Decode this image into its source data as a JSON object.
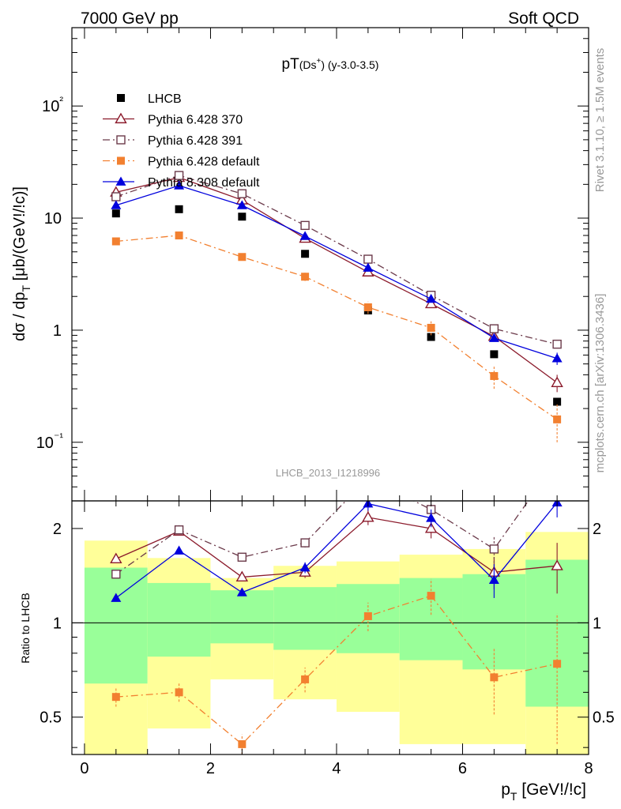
{
  "header": {
    "energy_label": "7000 GeV pp",
    "process_label": "Soft QCD"
  },
  "side_labels": {
    "rivet": "Rivet 3.1.10, ≥ 1.5M events",
    "mcplots": "mcplots.cern.ch [arXiv:1306.3436]"
  },
  "analysis_id": "LHCB_2013_I1218996",
  "chart_data": [
    {
      "type": "line",
      "panel": "main",
      "title": "pT(Ds⁺) (y-3.0-3.5)",
      "ylabel": "dσ / dp_T [μb/(GeV!/!c)]",
      "xlabel": "",
      "y_scale": "log",
      "xlim": [
        -0.2,
        8.0
      ],
      "ylim": [
        0.03,
        500
      ],
      "y_ticks": [
        0.1,
        1,
        10,
        100
      ],
      "y_tick_labels": [
        "10⁻¹",
        "1",
        "10",
        "10²"
      ],
      "legend_position": "top-left",
      "x": [
        0.5,
        1.5,
        2.5,
        3.5,
        4.5,
        5.5,
        6.5,
        7.5
      ],
      "series": [
        {
          "name": "LHCB",
          "color": "#000000",
          "marker": "filled-square",
          "line": "none",
          "values": [
            11.0,
            12.0,
            10.3,
            4.8,
            1.5,
            0.87,
            0.61,
            0.23
          ]
        },
        {
          "name": "Pythia 6.428 370",
          "color": "#8b1a2b",
          "marker": "open-triangle",
          "line": "solid",
          "values": [
            17.0,
            23.0,
            14.5,
            6.6,
            3.3,
            1.72,
            0.88,
            0.34
          ],
          "errors": [
            0.6,
            0.8,
            0.5,
            0.3,
            0.15,
            0.08,
            0.06,
            0.06
          ]
        },
        {
          "name": "Pythia 6.428 391",
          "color": "#6b3a4a",
          "marker": "open-square",
          "line": "dashdot",
          "values": [
            15.5,
            24.0,
            16.5,
            8.6,
            4.3,
            2.05,
            1.03,
            0.75
          ],
          "errors": [
            0.5,
            0.8,
            0.5,
            0.3,
            0.15,
            0.08,
            0.06,
            0.06
          ]
        },
        {
          "name": "Pythia 6.428 default",
          "color": "#f28030",
          "marker": "filled-square",
          "line": "dashdot",
          "values": [
            6.2,
            7.0,
            4.5,
            3.0,
            1.6,
            1.05,
            0.39,
            0.16
          ],
          "errors": [
            0.2,
            0.25,
            0.2,
            0.25,
            0.2,
            0.15,
            0.09,
            0.06
          ]
        },
        {
          "name": "Pythia 8.308 default",
          "color": "#0000dd",
          "marker": "filled-triangle",
          "line": "solid",
          "values": [
            13.0,
            19.5,
            13.0,
            6.9,
            3.6,
            1.9,
            0.85,
            0.56
          ],
          "errors": [
            0.5,
            0.7,
            0.5,
            0.3,
            0.15,
            0.08,
            0.06,
            0.07
          ]
        }
      ]
    },
    {
      "type": "line",
      "panel": "ratio",
      "ylabel": "Ratio to LHCB",
      "xlabel": "p_T [GeV!/!c]",
      "y_scale": "log",
      "xlim": [
        -0.2,
        8.0
      ],
      "ylim": [
        0.38,
        2.45
      ],
      "x_ticks": [
        0,
        2,
        4,
        6,
        8
      ],
      "y_ticks": [
        0.5,
        1,
        2
      ],
      "y_tick_labels": [
        "0.5",
        "1",
        "2"
      ],
      "x": [
        0.5,
        1.5,
        2.5,
        3.5,
        4.5,
        5.5,
        6.5,
        7.5
      ],
      "bands": {
        "bin_edges": [
          0,
          1,
          2,
          3,
          4,
          5,
          6,
          7,
          8
        ],
        "yellow_band_color": "#ffff99",
        "green_band_color": "#99ff99",
        "yellow_low": [
          0.36,
          0.46,
          0.66,
          0.57,
          0.52,
          0.41,
          0.41,
          0.36
        ],
        "yellow_high": [
          1.83,
          1.61,
          1.39,
          1.52,
          1.57,
          1.65,
          1.72,
          1.95
        ],
        "green_low": [
          0.64,
          0.78,
          0.86,
          0.82,
          0.8,
          0.76,
          0.71,
          0.54
        ],
        "green_high": [
          1.5,
          1.34,
          1.27,
          1.3,
          1.33,
          1.39,
          1.43,
          1.59
        ]
      },
      "series": [
        {
          "name": "Pythia 6.428 370",
          "color": "#8b1a2b",
          "marker": "open-triangle",
          "line": "solid",
          "values": [
            1.6,
            1.96,
            1.4,
            1.45,
            2.17,
            2.0,
            1.45,
            1.52
          ],
          "errors": [
            0.03,
            0.05,
            0.04,
            0.06,
            0.12,
            0.14,
            0.17,
            0.28
          ]
        },
        {
          "name": "Pythia 6.428 391",
          "color": "#6b3a4a",
          "marker": "open-square",
          "line": "dashdot",
          "values": [
            1.43,
            1.98,
            1.62,
            1.8,
            2.9,
            2.3,
            1.72,
            3.3
          ],
          "errors": [
            0.03,
            0.05,
            0.04,
            0.06,
            0.12,
            0.14,
            0.17,
            0.28
          ]
        },
        {
          "name": "Pythia 6.428 default",
          "color": "#f28030",
          "marker": "filled-square",
          "line": "dashdot",
          "values": [
            0.58,
            0.6,
            0.41,
            0.66,
            1.05,
            1.22,
            0.67,
            0.74
          ],
          "errors": [
            0.04,
            0.04,
            0.03,
            0.06,
            0.11,
            0.16,
            0.16,
            0.33
          ]
        },
        {
          "name": "Pythia 8.308 default",
          "color": "#0000dd",
          "marker": "filled-triangle",
          "line": "solid",
          "values": [
            1.2,
            1.7,
            1.25,
            1.5,
            2.4,
            2.16,
            1.37,
            2.42
          ],
          "errors": [
            0.03,
            0.04,
            0.03,
            0.06,
            0.12,
            0.14,
            0.17,
            0.25
          ]
        }
      ]
    }
  ]
}
